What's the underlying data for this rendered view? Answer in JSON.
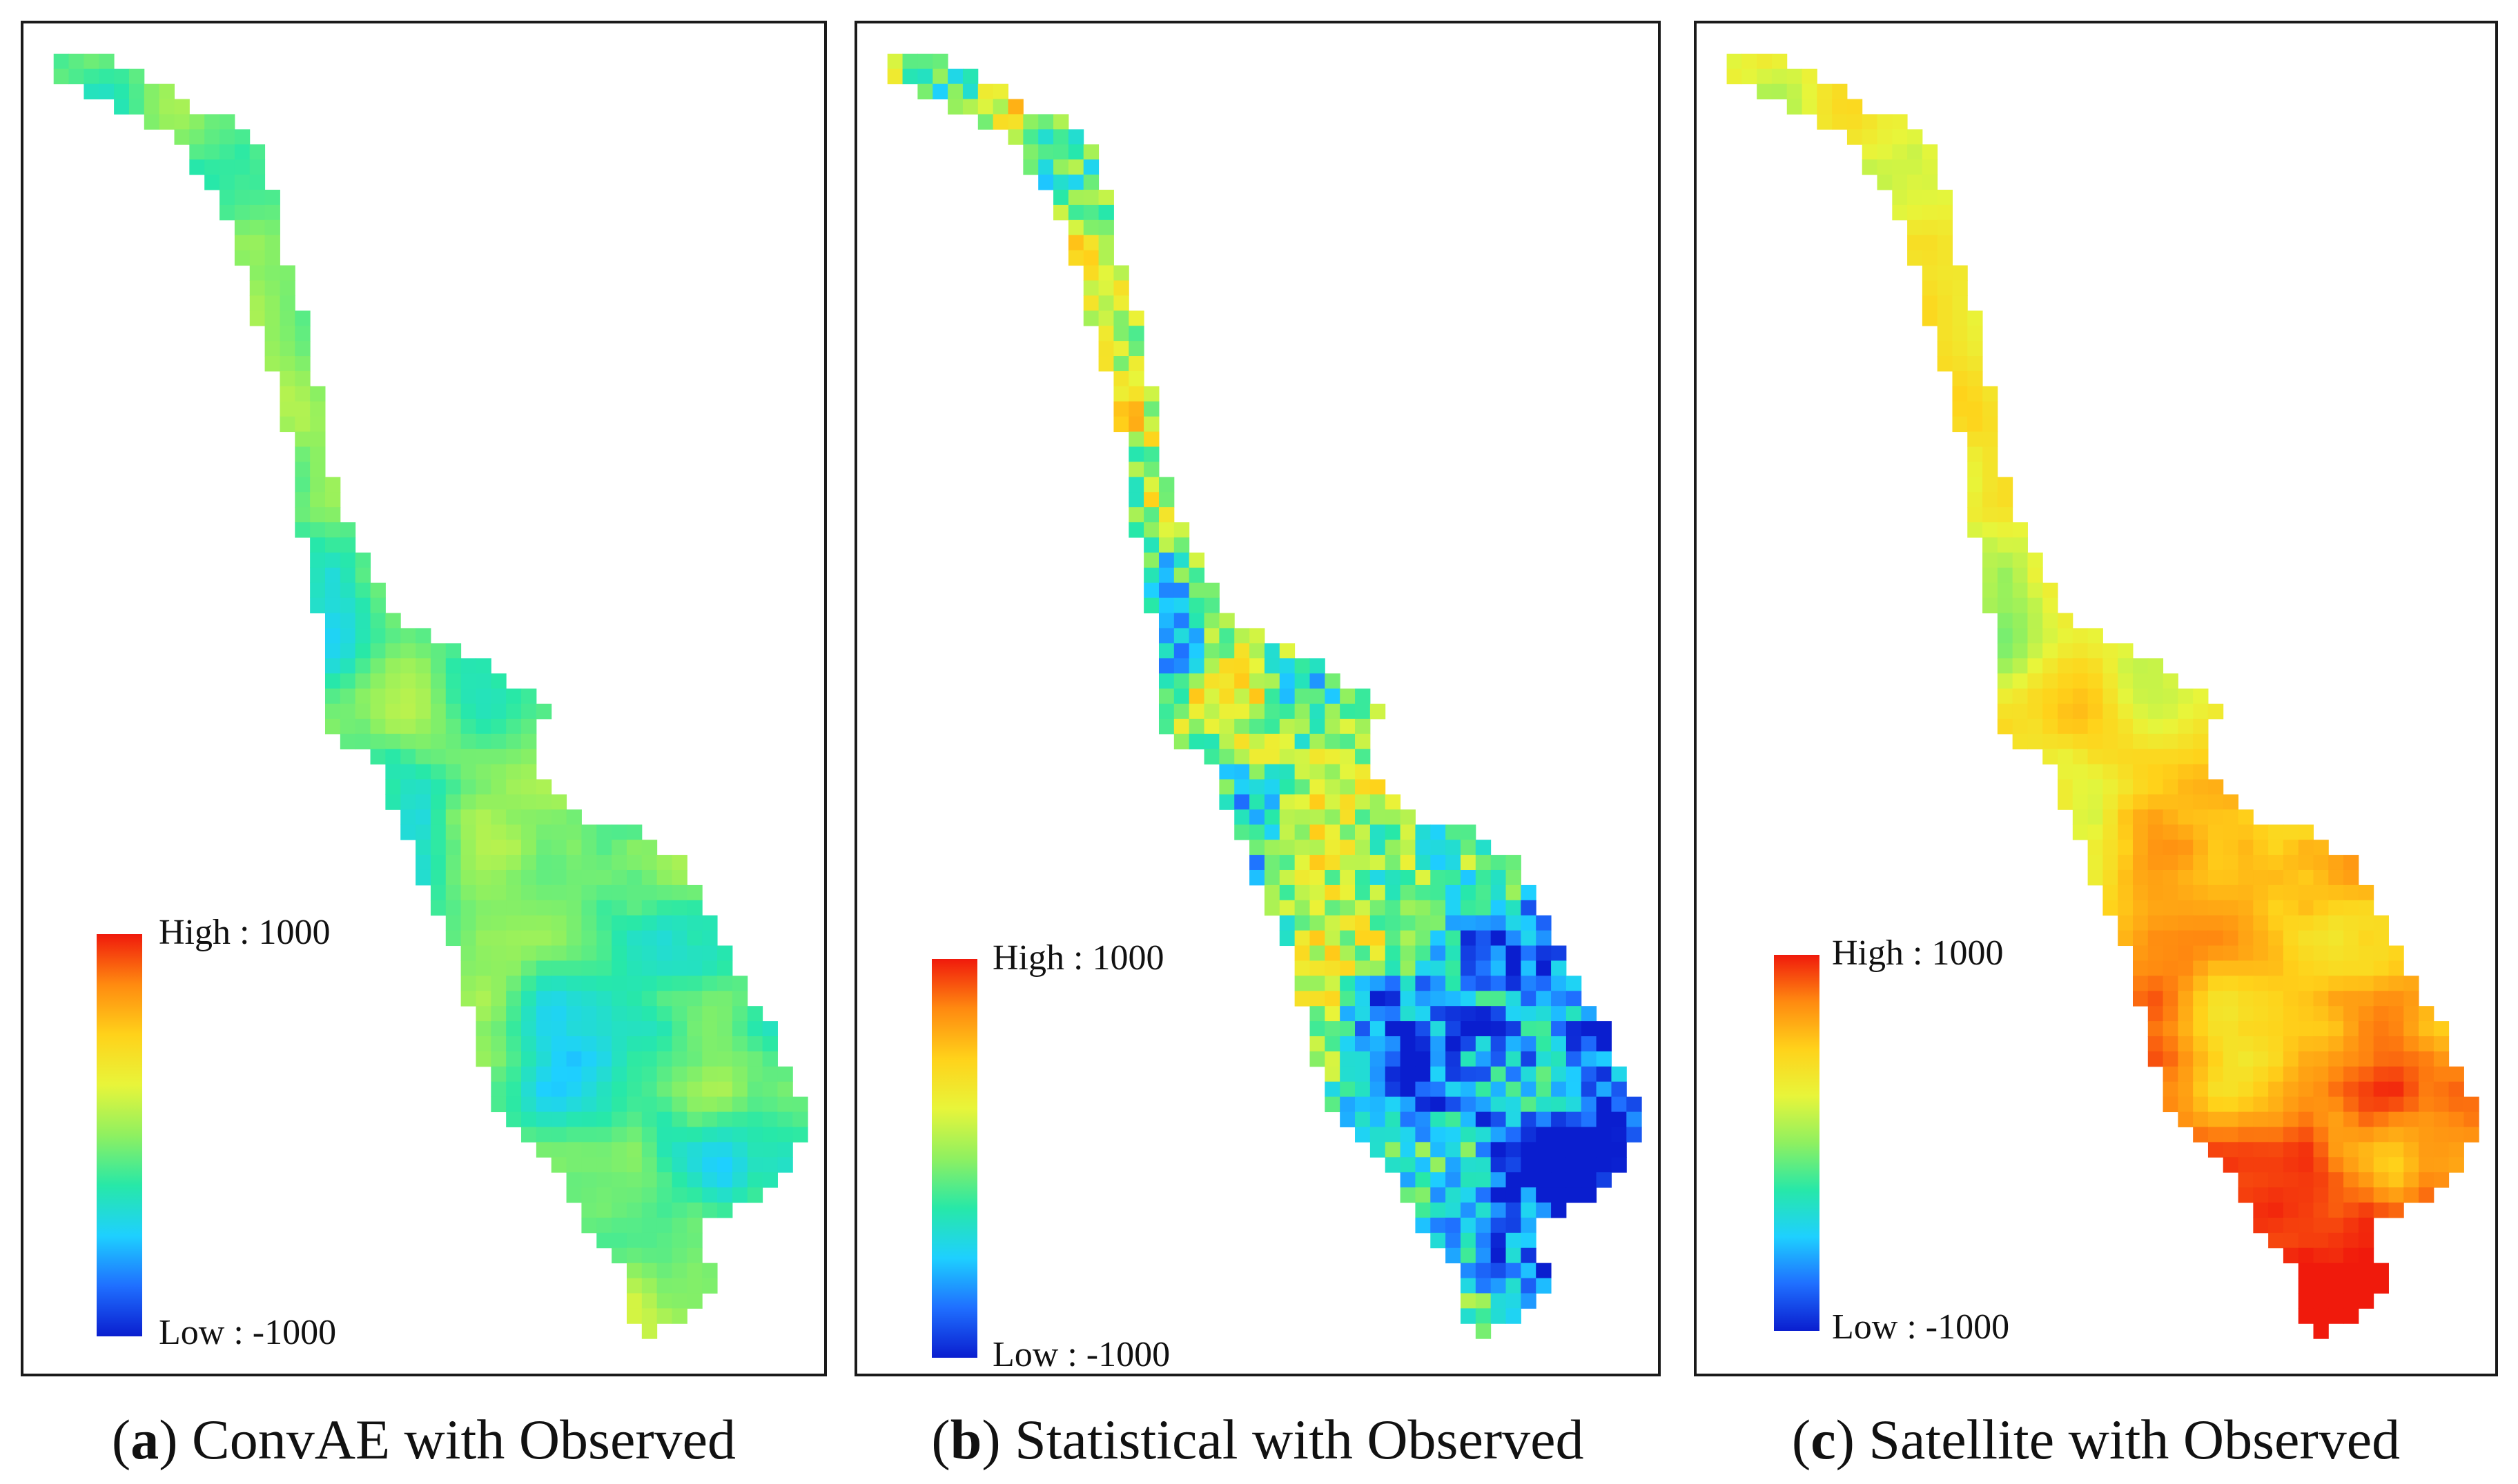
{
  "legend": {
    "high": "High : 1000",
    "low": "Low : -1000"
  },
  "panels": [
    {
      "letter": "a",
      "caption": "ConvAE with Observed",
      "scheme": "convae"
    },
    {
      "letter": "b",
      "caption": "Statistical with Observed",
      "scheme": "statistical"
    },
    {
      "letter": "c",
      "caption": "Satellite with Observed",
      "scheme": "satellite"
    }
  ],
  "colors": {
    "ramp": [
      "#0a1ecf",
      "#1f6fff",
      "#1ed0ff",
      "#27e8a8",
      "#8ff060",
      "#e8f53a",
      "#ffd21a",
      "#ff8a10",
      "#f01a0c"
    ]
  }
}
